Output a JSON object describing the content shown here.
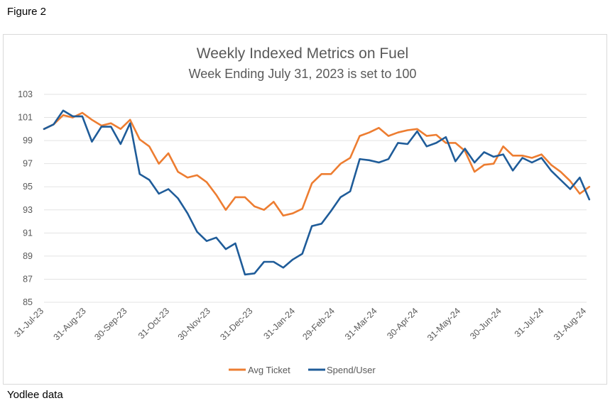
{
  "figure_label": "Figure 2",
  "source_note": "Yodlee data",
  "colors": {
    "avg_ticket": "#ED7D31",
    "spend_user": "#1F5C99",
    "grid": "#e3e3e3",
    "text": "#595959"
  },
  "chart_data": {
    "type": "line",
    "title": "Weekly Indexed Metrics on Fuel",
    "subtitle": "Week Ending July 31, 2023 is set to 100",
    "xlabel": "",
    "ylabel": "",
    "ylim": [
      85,
      103
    ],
    "yticks": [
      85,
      87,
      89,
      91,
      93,
      95,
      97,
      99,
      101,
      103
    ],
    "x_tick_labels": [
      "31-Jul-23",
      "31-Aug-23",
      "30-Sep-23",
      "31-Oct-23",
      "30-Nov-23",
      "31-Dec-23",
      "31-Jan-24",
      "29-Feb-24",
      "31-Mar-24",
      "30-Apr-24",
      "31-May-24",
      "30-Jun-24",
      "31-Jul-24",
      "31-Aug-24"
    ],
    "x_tick_dates": [
      "2023-07-31",
      "2023-08-31",
      "2023-09-30",
      "2023-10-31",
      "2023-11-30",
      "2023-12-31",
      "2024-01-31",
      "2024-02-29",
      "2024-03-31",
      "2024-04-30",
      "2024-05-31",
      "2024-06-30",
      "2024-07-31",
      "2024-08-31"
    ],
    "x_range": [
      "2023-07-31",
      "2024-08-31"
    ],
    "grid": "horizontal",
    "legend_position": "bottom",
    "series": [
      {
        "name": "Avg Ticket",
        "color": "#ED7D31",
        "x": [
          "2023-07-31",
          "2023-08-07",
          "2023-08-14",
          "2023-08-21",
          "2023-08-28",
          "2023-09-04",
          "2023-09-11",
          "2023-09-18",
          "2023-09-25",
          "2023-10-02",
          "2023-10-09",
          "2023-10-16",
          "2023-10-23",
          "2023-10-30",
          "2023-11-06",
          "2023-11-13",
          "2023-11-20",
          "2023-11-27",
          "2023-12-04",
          "2023-12-11",
          "2023-12-18",
          "2023-12-25",
          "2024-01-01",
          "2024-01-08",
          "2024-01-15",
          "2024-01-22",
          "2024-01-29",
          "2024-02-05",
          "2024-02-12",
          "2024-02-19",
          "2024-02-26",
          "2024-03-04",
          "2024-03-11",
          "2024-03-18",
          "2024-03-25",
          "2024-04-01",
          "2024-04-08",
          "2024-04-15",
          "2024-04-22",
          "2024-04-29",
          "2024-05-06",
          "2024-05-13",
          "2024-05-20",
          "2024-05-27",
          "2024-06-03",
          "2024-06-10",
          "2024-06-17",
          "2024-06-24",
          "2024-07-01",
          "2024-07-08",
          "2024-07-15",
          "2024-07-22",
          "2024-07-29",
          "2024-08-05",
          "2024-08-12",
          "2024-08-19",
          "2024-08-26",
          "2024-09-02"
        ],
        "values": [
          100.0,
          100.4,
          101.2,
          101.0,
          101.4,
          100.8,
          100.3,
          100.5,
          100.0,
          100.8,
          99.1,
          98.5,
          97.0,
          97.9,
          96.3,
          95.8,
          96.0,
          95.4,
          94.3,
          93.0,
          94.1,
          94.1,
          93.3,
          93.0,
          93.7,
          92.5,
          92.7,
          93.1,
          95.3,
          96.1,
          96.1,
          97.0,
          97.5,
          99.4,
          99.7,
          100.1,
          99.4,
          99.7,
          99.9,
          100.0,
          99.4,
          99.5,
          98.8,
          98.8,
          98.1,
          96.3,
          96.9,
          97.0,
          98.5,
          97.7,
          97.7,
          97.5,
          97.8,
          96.9,
          96.3,
          95.5,
          94.4,
          95.0
        ]
      },
      {
        "name": "Spend/User",
        "color": "#1F5C99",
        "x": [
          "2023-07-31",
          "2023-08-07",
          "2023-08-14",
          "2023-08-21",
          "2023-08-28",
          "2023-09-04",
          "2023-09-11",
          "2023-09-18",
          "2023-09-25",
          "2023-10-02",
          "2023-10-09",
          "2023-10-16",
          "2023-10-23",
          "2023-10-30",
          "2023-11-06",
          "2023-11-13",
          "2023-11-20",
          "2023-11-27",
          "2023-12-04",
          "2023-12-11",
          "2023-12-18",
          "2023-12-25",
          "2024-01-01",
          "2024-01-08",
          "2024-01-15",
          "2024-01-22",
          "2024-01-29",
          "2024-02-05",
          "2024-02-12",
          "2024-02-19",
          "2024-02-26",
          "2024-03-04",
          "2024-03-11",
          "2024-03-18",
          "2024-03-25",
          "2024-04-01",
          "2024-04-08",
          "2024-04-15",
          "2024-04-22",
          "2024-04-29",
          "2024-05-06",
          "2024-05-13",
          "2024-05-20",
          "2024-05-27",
          "2024-06-03",
          "2024-06-10",
          "2024-06-17",
          "2024-06-24",
          "2024-07-01",
          "2024-07-08",
          "2024-07-15",
          "2024-07-22",
          "2024-07-29",
          "2024-08-05",
          "2024-08-12",
          "2024-08-19",
          "2024-08-26",
          "2024-09-02"
        ],
        "values": [
          100.0,
          100.4,
          101.6,
          101.1,
          101.1,
          98.9,
          100.2,
          100.2,
          98.7,
          100.5,
          96.1,
          95.6,
          94.4,
          94.8,
          94.0,
          92.7,
          91.1,
          90.3,
          90.6,
          89.6,
          90.1,
          87.4,
          87.5,
          88.5,
          88.5,
          88.0,
          88.7,
          89.2,
          91.6,
          91.8,
          92.9,
          94.1,
          94.6,
          97.4,
          97.3,
          97.1,
          97.4,
          98.8,
          98.7,
          99.8,
          98.5,
          98.8,
          99.3,
          97.2,
          98.3,
          97.1,
          98.0,
          97.6,
          97.8,
          96.4,
          97.5,
          97.1,
          97.5,
          96.4,
          95.6,
          94.8,
          95.8,
          93.9
        ]
      }
    ]
  }
}
